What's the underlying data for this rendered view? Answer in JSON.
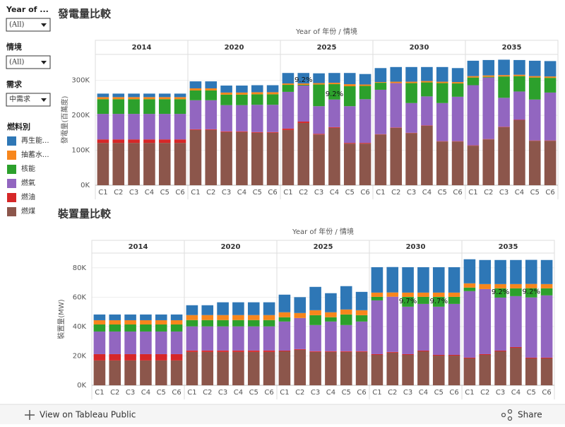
{
  "filters": [
    {
      "label": "Year of ...",
      "value": "(All)"
    },
    {
      "label": "情境",
      "value": "(All)"
    },
    {
      "label": "需求",
      "value": "中需求"
    }
  ],
  "legend_title": "燃料別",
  "toolbar": {
    "view": "View on Tableau Public",
    "share": "Share"
  },
  "chart_data": [
    {
      "type": "bar",
      "stacked": true,
      "title": "發電量比較",
      "header": "Year of 年份  /  情境",
      "y_label": "發電量(百萬度)",
      "groups": [
        "2014",
        "2020",
        "2025",
        "2030",
        "2035"
      ],
      "categories": [
        "C1",
        "C2",
        "C3",
        "C4",
        "C5",
        "C6",
        "C1",
        "C2",
        "C3",
        "C4",
        "C5",
        "C6",
        "C1",
        "C2",
        "C3",
        "C4",
        "C5",
        "C6",
        "C1",
        "C2",
        "C3",
        "C4",
        "C5",
        "C6",
        "C1",
        "C2",
        "C3",
        "C4",
        "C5",
        "C6"
      ],
      "ylim": [
        0,
        374000
      ],
      "yticks": [
        {
          "value": 0,
          "label": "0K"
        },
        {
          "value": 100000,
          "label": "100K"
        },
        {
          "value": 200000,
          "label": "200K"
        },
        {
          "value": 300000,
          "label": "300K"
        }
      ],
      "grid": true,
      "series": [
        {
          "name": "再生能...",
          "color": "#2e77b6",
          "values": [
            10000,
            10000,
            10000,
            10000,
            10000,
            10000,
            20000,
            20000,
            20000,
            20000,
            20000,
            20000,
            30000,
            30000,
            28000,
            28000,
            32000,
            30000,
            40000,
            42000,
            42000,
            40000,
            42000,
            40000,
            44000,
            44000,
            44000,
            42000,
            44000,
            44000
          ]
        },
        {
          "name": "抽蓄水...",
          "color": "#f7861c",
          "values": [
            6000,
            6000,
            6000,
            6000,
            6000,
            6000,
            6000,
            6000,
            6000,
            6000,
            6000,
            6000,
            4000,
            4000,
            4000,
            4000,
            6000,
            4000,
            2000,
            4000,
            4000,
            4000,
            4000,
            4000,
            4000,
            4000,
            4000,
            4000,
            4000,
            4000
          ]
        },
        {
          "name": "核能",
          "color": "#2ca02c",
          "values": [
            42000,
            42000,
            42000,
            42000,
            42000,
            42000,
            28000,
            28000,
            30000,
            30000,
            30000,
            30000,
            20000,
            2000,
            62000,
            44000,
            57000,
            38000,
            20000,
            0,
            57000,
            40000,
            57000,
            38000,
            22000,
            2000,
            61000,
            44000,
            63000,
            42000
          ]
        },
        {
          "name": "燃氣",
          "color": "#9266c0",
          "values": [
            73000,
            73000,
            73000,
            73000,
            73000,
            73000,
            83000,
            83000,
            75000,
            75000,
            78000,
            78000,
            105000,
            103000,
            79000,
            79000,
            105000,
            125000,
            127000,
            127000,
            85000,
            83000,
            109000,
            127000,
            172000,
            176000,
            83000,
            81000,
            117000,
            137000
          ]
        },
        {
          "name": "燃油",
          "color": "#d62728",
          "values": [
            10000,
            10000,
            10000,
            10000,
            10000,
            10000,
            2000,
            2000,
            2000,
            2000,
            2000,
            2000,
            4000,
            4000,
            2000,
            2000,
            2000,
            2000,
            1000,
            1000,
            1000,
            1000,
            1000,
            1000,
            1000,
            1000,
            1000,
            1000,
            1000,
            1000
          ]
        },
        {
          "name": "燃煤",
          "color": "#8c564b",
          "values": [
            121000,
            121000,
            121000,
            121000,
            121000,
            121000,
            158000,
            158000,
            152000,
            152000,
            150000,
            150000,
            158000,
            178000,
            145000,
            164000,
            119000,
            119000,
            145000,
            164000,
            149000,
            170000,
            125000,
            125000,
            113000,
            131000,
            166000,
            186000,
            127000,
            127000
          ]
        }
      ],
      "bar_labels": [
        null,
        null,
        null,
        null,
        null,
        null,
        null,
        null,
        null,
        null,
        null,
        null,
        null,
        "9.2%",
        null,
        "9.2%",
        null,
        null,
        null,
        null,
        null,
        null,
        null,
        null,
        null,
        null,
        null,
        null,
        null,
        null
      ]
    },
    {
      "type": "bar",
      "stacked": true,
      "title": "裝置量比較",
      "header": "Year of 年份  /  情境",
      "y_label": "裝置量(MW)",
      "groups": [
        "2014",
        "2020",
        "2025",
        "2030",
        "2035"
      ],
      "categories": [
        "C1",
        "C2",
        "C3",
        "C4",
        "C5",
        "C6",
        "C1",
        "C2",
        "C3",
        "C4",
        "C5",
        "C6",
        "C1",
        "C2",
        "C3",
        "C4",
        "C5",
        "C6",
        "C1",
        "C2",
        "C3",
        "C4",
        "C5",
        "C6",
        "C1",
        "C2",
        "C3",
        "C4",
        "C5",
        "C6"
      ],
      "ylim": [
        0,
        90000
      ],
      "yticks": [
        {
          "value": 0,
          "label": "0K"
        },
        {
          "value": 20000,
          "label": "20K"
        },
        {
          "value": 40000,
          "label": "40K"
        },
        {
          "value": 60000,
          "label": "60K"
        },
        {
          "value": 80000,
          "label": "80K"
        }
      ],
      "grid": true,
      "series": [
        {
          "color": "#2e77b6",
          "values": [
            3900,
            3900,
            3900,
            3900,
            3900,
            3900,
            6700,
            6700,
            8700,
            8700,
            8700,
            8700,
            12000,
            10800,
            15900,
            13000,
            15900,
            12500,
            17300,
            17300,
            17300,
            17300,
            17300,
            17300,
            16400,
            16400,
            16400,
            16400,
            16400,
            16400
          ]
        },
        {
          "color": "#f7861c",
          "values": [
            2900,
            2900,
            2900,
            2900,
            2900,
            2900,
            3400,
            3400,
            3400,
            3400,
            3400,
            3400,
            3400,
            3400,
            3400,
            3400,
            3400,
            3400,
            2900,
            2900,
            2900,
            2900,
            2900,
            2900,
            2900,
            3400,
            2900,
            2900,
            2900,
            2900
          ]
        },
        {
          "color": "#2ca02c",
          "values": [
            4800,
            4800,
            4800,
            4800,
            4800,
            4800,
            4300,
            4300,
            4300,
            4300,
            4300,
            4300,
            2900,
            0,
            6700,
            2900,
            7200,
            4300,
            2400,
            0,
            6700,
            4800,
            6700,
            4800,
            2400,
            0,
            6300,
            5300,
            6300,
            4800
          ]
        },
        {
          "color": "#9266c0",
          "values": [
            15400,
            15400,
            15400,
            15400,
            15400,
            15400,
            16400,
            16400,
            16400,
            16400,
            16400,
            16400,
            19800,
            21200,
            17800,
            20200,
            17800,
            20200,
            36600,
            37600,
            32300,
            31800,
            32800,
            34700,
            45300,
            44300,
            36100,
            34700,
            41000,
            42400
          ]
        },
        {
          "color": "#d62728",
          "values": [
            4300,
            4300,
            4300,
            4300,
            4300,
            4300,
            1000,
            1000,
            1000,
            1000,
            1000,
            1000,
            500,
            500,
            500,
            500,
            500,
            500,
            500,
            500,
            500,
            500,
            500,
            500,
            500,
            500,
            500,
            500,
            500,
            500
          ]
        },
        {
          "color": "#8c564b",
          "values": [
            16900,
            16900,
            16900,
            16900,
            16900,
            16900,
            22700,
            22700,
            22700,
            22700,
            22700,
            22700,
            23100,
            24100,
            22700,
            22700,
            22700,
            22700,
            20700,
            22200,
            20700,
            23100,
            20200,
            20200,
            18300,
            20700,
            23100,
            25500,
            18300,
            18300
          ]
        }
      ],
      "bar_labels": [
        null,
        null,
        null,
        null,
        null,
        null,
        null,
        null,
        null,
        null,
        null,
        null,
        null,
        null,
        null,
        null,
        null,
        null,
        null,
        null,
        "9.7%",
        null,
        "9.7%",
        null,
        null,
        null,
        "9.2%",
        null,
        "9.2%",
        null
      ]
    }
  ]
}
